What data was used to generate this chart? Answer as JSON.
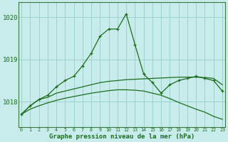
{
  "xlabel": "Graphe pression niveau de la mer (hPa)",
  "background_color": "#c8ecec",
  "grid_color": "#99cccc",
  "line_color": "#1a6e1a",
  "hours": [
    0,
    1,
    2,
    3,
    4,
    5,
    6,
    7,
    8,
    9,
    10,
    11,
    12,
    13,
    14,
    15,
    16,
    17,
    18,
    19,
    20,
    21,
    22,
    23
  ],
  "pressure_main": [
    1017.7,
    1017.9,
    1018.05,
    1018.15,
    1018.35,
    1018.5,
    1018.6,
    1018.85,
    1019.15,
    1019.55,
    1019.72,
    1019.72,
    1020.08,
    1019.35,
    1018.65,
    1018.45,
    1018.2,
    1018.4,
    1018.5,
    1018.55,
    1018.6,
    1018.55,
    1018.5,
    1018.25
  ],
  "pressure_upper": [
    1017.7,
    1017.9,
    1018.05,
    1018.1,
    1018.2,
    1018.25,
    1018.3,
    1018.35,
    1018.4,
    1018.45,
    1018.48,
    1018.5,
    1018.52,
    1018.53,
    1018.54,
    1018.55,
    1018.56,
    1018.57,
    1018.58,
    1018.58,
    1018.58,
    1018.57,
    1018.55,
    1018.4
  ],
  "pressure_lower": [
    1017.7,
    1017.82,
    1017.9,
    1017.97,
    1018.03,
    1018.08,
    1018.12,
    1018.16,
    1018.2,
    1018.23,
    1018.26,
    1018.28,
    1018.28,
    1018.27,
    1018.25,
    1018.2,
    1018.15,
    1018.07,
    1017.98,
    1017.9,
    1017.82,
    1017.75,
    1017.65,
    1017.58
  ],
  "ylim": [
    1017.4,
    1020.35
  ],
  "yticks": [
    1018,
    1019,
    1020
  ],
  "yticklabels": [
    "1018",
    "1019",
    "1020"
  ],
  "xticks": [
    0,
    1,
    2,
    3,
    4,
    5,
    6,
    7,
    8,
    9,
    10,
    11,
    12,
    13,
    14,
    15,
    16,
    17,
    18,
    19,
    20,
    21,
    22,
    23
  ]
}
